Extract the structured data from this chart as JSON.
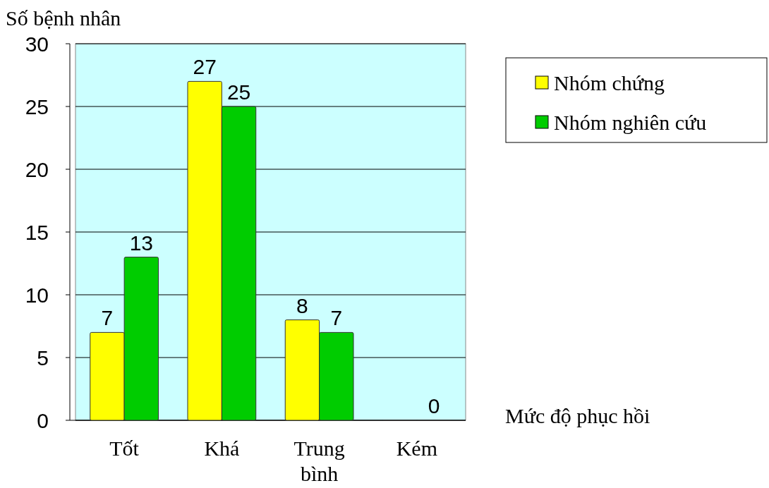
{
  "chart_data": {
    "type": "bar",
    "ylabel": "Số bệnh nhân",
    "xlabel": "Mức độ phục hồi",
    "categories": [
      "Tốt",
      "Khá",
      "Trung bình",
      "Kém"
    ],
    "series": [
      {
        "name": "Nhóm chứng",
        "color": "#ffff00",
        "values": [
          7,
          27,
          8,
          0
        ],
        "value_labels": [
          "7",
          "27",
          "8",
          null
        ]
      },
      {
        "name": "Nhóm nghiên cứu",
        "color": "#00cc00",
        "values": [
          13,
          25,
          7,
          0
        ],
        "value_labels": [
          "13",
          "25",
          "7",
          "0"
        ]
      }
    ],
    "ylim": [
      0,
      30
    ],
    "yticks": [
      0,
      5,
      10,
      15,
      20,
      25,
      30
    ],
    "grid": "y",
    "legend": "top right"
  }
}
